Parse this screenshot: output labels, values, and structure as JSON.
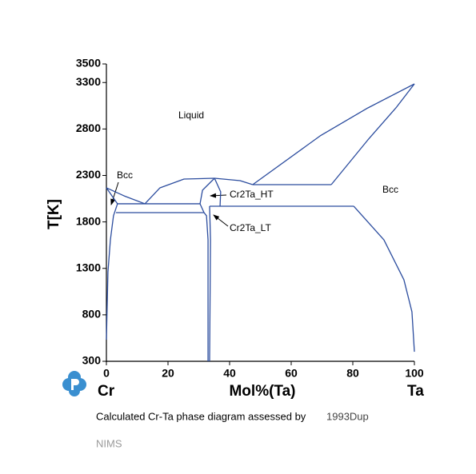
{
  "chart_data": {
    "type": "line",
    "ylabel": "T[K]",
    "xlabel": "Mol%(Ta)",
    "left_element": "Cr",
    "right_element": "Ta",
    "xlim": [
      0,
      100
    ],
    "xticks": [
      0,
      20,
      40,
      60,
      80,
      100
    ],
    "ylim": [
      300,
      3500
    ],
    "yticks": [
      300,
      800,
      1300,
      1800,
      2300,
      2800,
      3300,
      3500
    ],
    "annotations": [
      "Liquid",
      "Bcc",
      "Bcc",
      "Cr2Ta_HT",
      "Cr2Ta_LT"
    ],
    "series": [
      {
        "color": "#2b4c9e",
        "x": [
          0,
          5.7,
          12.5
        ],
        "values": [
          2167,
          2081,
          1995
        ]
      },
      {
        "color": "#2b4c9e",
        "x": [
          0,
          3.6
        ],
        "values": [
          2167,
          1995
        ]
      },
      {
        "color": "#2b4c9e",
        "x": [
          3.6,
          2.3,
          1.3,
          0.5,
          0
        ],
        "values": [
          1995,
          1866,
          1607,
          1263,
          532
        ]
      },
      {
        "color": "#2b4c9e",
        "x": [
          3.6,
          30.4
        ],
        "values": [
          1995,
          1995
        ]
      },
      {
        "color": "#2b4c9e",
        "x": [
          3.1,
          31.7
        ],
        "values": [
          1900,
          1900
        ]
      },
      {
        "color": "#2b4c9e",
        "x": [
          12.5,
          17.4,
          25.2,
          35.1,
          43.4,
          47.5
        ],
        "values": [
          1995,
          2167,
          2261,
          2270,
          2244,
          2201
        ]
      },
      {
        "color": "#2b4c9e",
        "x": [
          35.1,
          31.2,
          30.4,
          31.7
        ],
        "values": [
          2270,
          2141,
          1995,
          1900
        ]
      },
      {
        "color": "#2b4c9e",
        "x": [
          35.1,
          37.1,
          36.9
        ],
        "values": [
          2270,
          2124,
          1969
        ]
      },
      {
        "color": "#2b4c9e",
        "x": [
          47.5,
          73
        ],
        "values": [
          2201,
          2201
        ]
      },
      {
        "color": "#2b4c9e",
        "x": [
          47.5,
          69.4,
          84.9,
          100
        ],
        "values": [
          2201,
          2726,
          3027,
          3285
        ]
      },
      {
        "color": "#2b4c9e",
        "x": [
          73,
          84.9,
          94,
          100
        ],
        "values": [
          2201,
          2683,
          3027,
          3285
        ]
      },
      {
        "color": "#2b4c9e",
        "x": [
          33.5,
          80.3
        ],
        "values": [
          1969,
          1969
        ]
      },
      {
        "color": "#2b4c9e",
        "x": [
          80.3,
          90.1,
          96.6,
          99.2,
          100
        ],
        "values": [
          1969,
          1607,
          1177,
          833,
          403
        ]
      },
      {
        "color": "#2b4c9e",
        "x": [
          31.7,
          32.5,
          33,
          33
        ],
        "values": [
          1900,
          1866,
          1607,
          300
        ]
      },
      {
        "color": "#2b4c9e",
        "x": [
          33.5,
          33.8,
          33.5
        ],
        "values": [
          1969,
          1607,
          300
        ]
      }
    ]
  },
  "caption": "Calculated Cr-Ta phase diagram assessed by",
  "reference": "1993Dup",
  "footer": "NIMS"
}
